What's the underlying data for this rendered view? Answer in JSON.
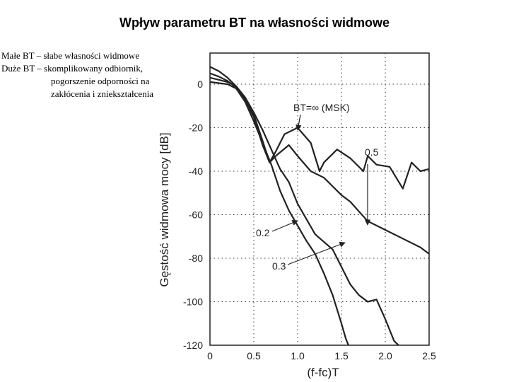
{
  "slide": {
    "title": "Wpływ parametru BT na własności widmowe",
    "notes": [
      "Małe BT – słabe własności widmowe",
      "Duże BT – skomplikowany odbiornik,",
      "pogorszenie odporności na",
      "zakłócenia i zniekształcenia"
    ]
  },
  "chart_data": {
    "type": "line",
    "title": "",
    "xlabel": "(f-fc)T",
    "ylabel": "Gęstość widmowa mocy  [dB]",
    "xlim": [
      0,
      2.5
    ],
    "ylim": [
      -120,
      0
    ],
    "xticks": [
      "0",
      "0.5",
      "1.0",
      "1.5",
      "2.0",
      "2.5"
    ],
    "yticks": [
      "0",
      "-20",
      "-40",
      "-60",
      "-80",
      "-100",
      "-120"
    ],
    "grid": true,
    "series": [
      {
        "name": "BT=∞ (MSK)",
        "x": [
          0,
          0.1,
          0.2,
          0.25,
          0.3,
          0.4,
          0.5,
          0.6,
          0.68,
          0.75,
          0.85,
          1.0,
          1.15,
          1.25,
          1.3,
          1.45,
          1.6,
          1.75,
          1.8,
          1.9,
          2.05,
          2.2,
          2.3,
          2.4,
          2.5
        ],
        "y": [
          5,
          3.5,
          1.5,
          0,
          -2,
          -7,
          -15,
          -28,
          -36,
          -31,
          -23,
          -20,
          -27,
          -40,
          -36,
          -30,
          -34,
          -40,
          -33,
          -37,
          -38,
          -48,
          -36,
          -40,
          -39
        ]
      },
      {
        "name": "0.5",
        "x": [
          0,
          0.1,
          0.2,
          0.3,
          0.4,
          0.5,
          0.6,
          0.68,
          0.75,
          0.9,
          1.0,
          1.15,
          1.3,
          1.5,
          1.6,
          1.8,
          2.0,
          2.2,
          2.4,
          2.5
        ],
        "y": [
          8,
          6,
          3,
          -1,
          -7,
          -14,
          -26,
          -36,
          -33,
          -28,
          -33,
          -40,
          -43,
          -51,
          -54,
          -63,
          -67,
          -71,
          -75,
          -78
        ]
      },
      {
        "name": "0.3",
        "x": [
          0,
          0.1,
          0.2,
          0.3,
          0.4,
          0.5,
          0.6,
          0.7,
          0.8,
          0.9,
          1.0,
          1.2,
          1.4,
          1.5,
          1.6,
          1.7,
          1.8,
          1.9,
          2.0,
          2.1,
          2.2
        ],
        "y": [
          3,
          2,
          1,
          -1,
          -6,
          -13,
          -21,
          -30,
          -39,
          -45,
          -55,
          -69,
          -76,
          -84,
          -92,
          -97,
          -100,
          -99,
          -108,
          -118,
          -122
        ]
      },
      {
        "name": "0.2",
        "x": [
          0,
          0.1,
          0.2,
          0.3,
          0.4,
          0.5,
          0.6,
          0.7,
          0.8,
          0.9,
          1.0,
          1.1,
          1.2,
          1.3,
          1.4,
          1.5,
          1.55,
          1.6
        ],
        "y": [
          1,
          0.5,
          0,
          -2,
          -8,
          -17,
          -27,
          -37,
          -49,
          -58,
          -65,
          -72,
          -78,
          -87,
          -97,
          -110,
          -117,
          -122
        ]
      }
    ],
    "annotations": [
      {
        "text": "BT=∞ (MSK)",
        "x": 1.0,
        "y": -20
      },
      {
        "text": "0.5",
        "x": 1.8,
        "y": -64
      },
      {
        "text": "0.2",
        "x": 1.03,
        "y": -63
      },
      {
        "text": "0.3",
        "x": 1.55,
        "y": -77
      }
    ]
  }
}
